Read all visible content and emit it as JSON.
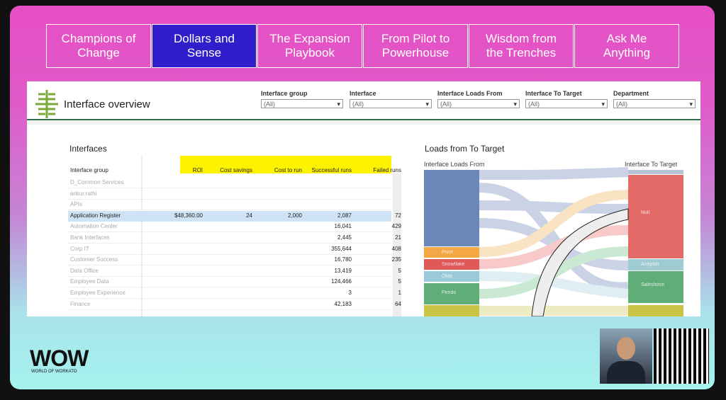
{
  "nav": [
    {
      "lines": [
        "Champions of",
        "Change"
      ]
    },
    {
      "lines": [
        "Dollars and",
        "Sense"
      ],
      "active": true
    },
    {
      "lines": [
        "The Expansion",
        "Playbook"
      ]
    },
    {
      "lines": [
        "From Pilot to",
        "Powerhouse"
      ]
    },
    {
      "lines": [
        "Wisdom from",
        "the Trenches"
      ]
    },
    {
      "lines": [
        "Ask Me",
        "Anything"
      ]
    }
  ],
  "dashboard": {
    "title": "Interface overview",
    "filters": [
      {
        "label": "Interface group",
        "value": "(All)"
      },
      {
        "label": "Interface",
        "value": "(All)"
      },
      {
        "label": "Interface Loads From",
        "value": "(All)"
      },
      {
        "label": "Interface To Target",
        "value": "(All)"
      },
      {
        "label": "Department",
        "value": "(All)"
      }
    ],
    "table": {
      "title": "Interfaces",
      "row_header": "Interface group",
      "columns": [
        "ROI",
        "Cost savings",
        "Cost to run",
        "Successful runs",
        "Failed runs"
      ],
      "selected_row": 3,
      "rows": [
        {
          "name": "D_Common Services",
          "cells": [
            null,
            null,
            null,
            null,
            null
          ]
        },
        {
          "name": "ankur.rathi",
          "cells": [
            null,
            null,
            null,
            null,
            null
          ]
        },
        {
          "name": "APIs",
          "cells": [
            null,
            null,
            null,
            null,
            null
          ]
        },
        {
          "name": "Application Register",
          "cells": [
            "$48,360.00",
            "24",
            "2,000",
            "2,087",
            "72"
          ]
        },
        {
          "name": "Automation Center",
          "cells": [
            null,
            null,
            null,
            "16,041",
            "429"
          ]
        },
        {
          "name": "Bank Interfaces",
          "cells": [
            null,
            null,
            null,
            "2,445",
            "21"
          ]
        },
        {
          "name": "Corp IT",
          "cells": [
            null,
            null,
            null,
            "355,644",
            "408"
          ]
        },
        {
          "name": "Customer Success",
          "cells": [
            null,
            null,
            null,
            "16,780",
            "235"
          ]
        },
        {
          "name": "Data Office",
          "cells": [
            null,
            null,
            null,
            "13,419",
            "5"
          ]
        },
        {
          "name": "Employee Data",
          "cells": [
            null,
            null,
            null,
            "124,466",
            "5"
          ]
        },
        {
          "name": "Employee Experience",
          "cells": [
            null,
            null,
            null,
            "3",
            "1"
          ]
        },
        {
          "name": "Finance",
          "cells": [
            null,
            null,
            null,
            "42,183",
            "64"
          ]
        }
      ]
    },
    "sankey": {
      "title": "Loads from To Target",
      "left_header": "Interface Loads From",
      "right_header": "Interface To Target",
      "left_labels": [
        "Pivot",
        "Snowflake",
        "Okta",
        "Pendo"
      ],
      "right_labels": [
        "Null",
        "Anaplan",
        "Salesforce"
      ]
    }
  },
  "brand": {
    "logo": "WOW",
    "tagline": "WORLD OF WORKATO"
  }
}
